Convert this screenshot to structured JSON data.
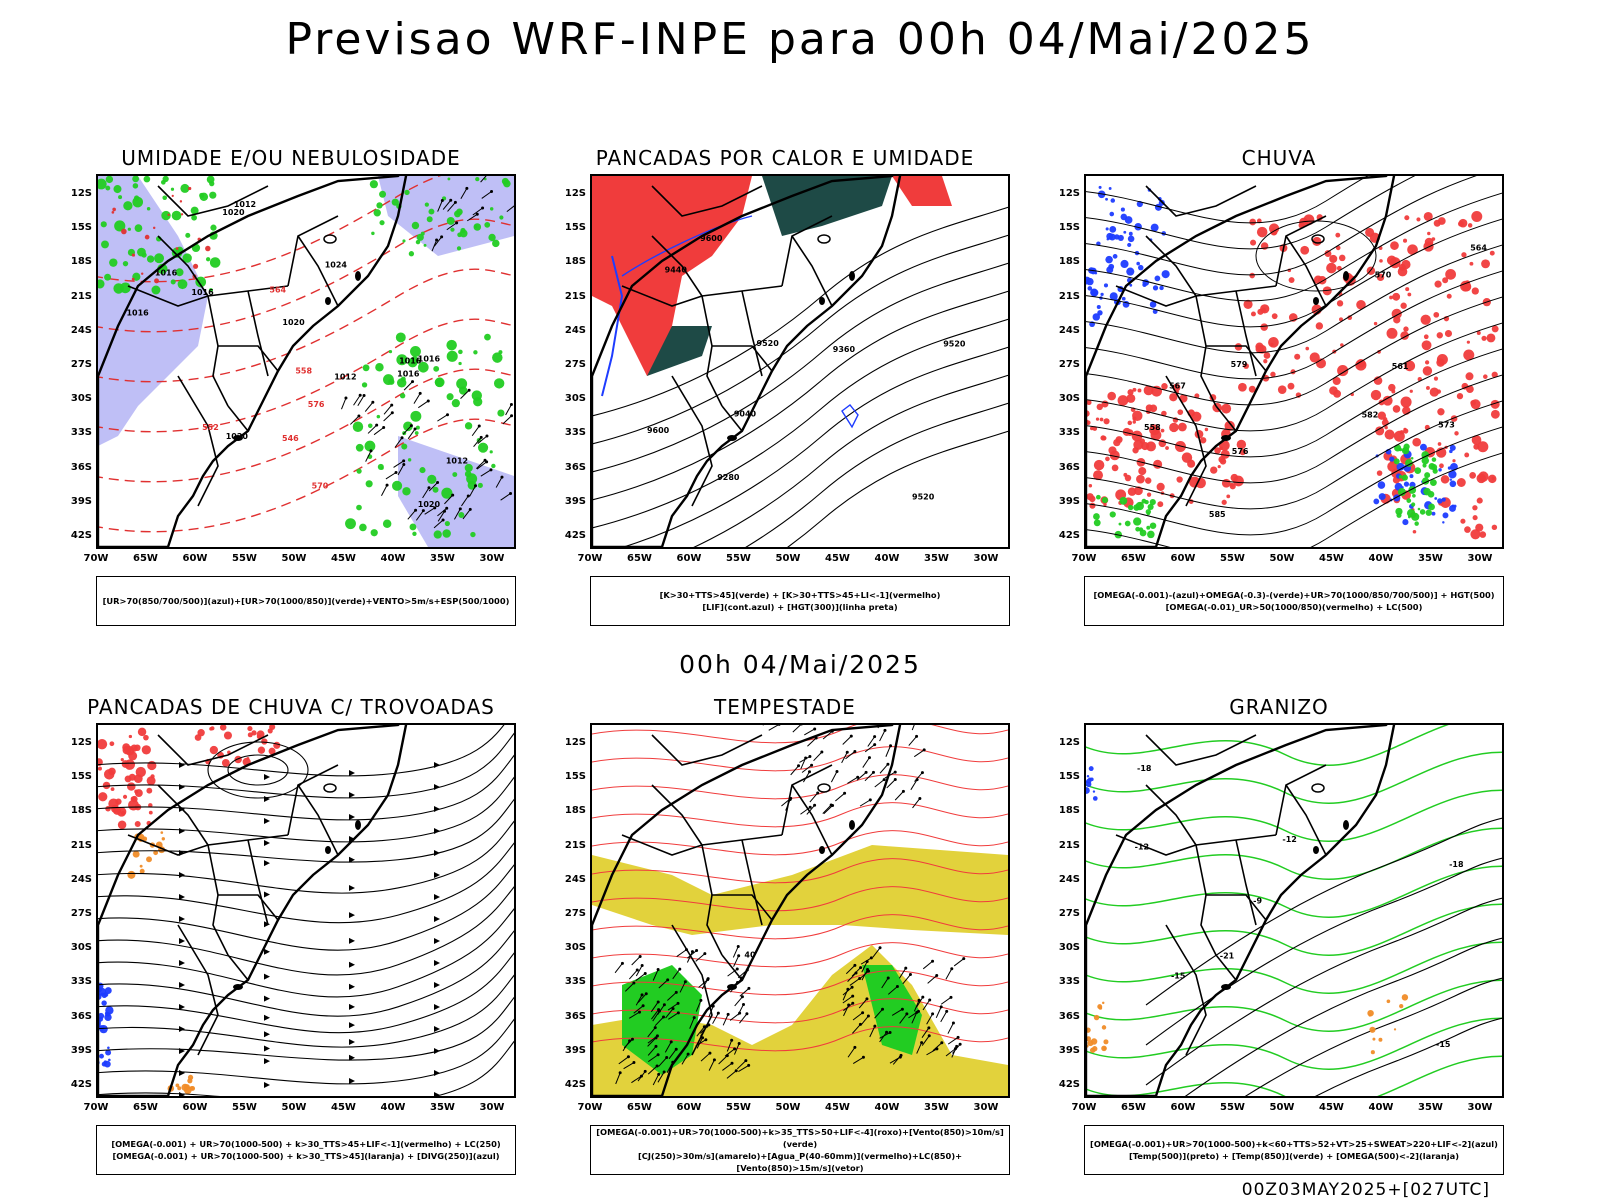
{
  "title": "Previsao WRF-INPE  para 00h 04/Mai/2025",
  "mid_title": "00h 04/Mai/2025",
  "footer": "00Z03MAY2025+[027UTC]",
  "lat_labels": [
    "12S",
    "15S",
    "18S",
    "21S",
    "24S",
    "27S",
    "30S",
    "33S",
    "36S",
    "39S",
    "42S"
  ],
  "lon_labels": [
    "70W",
    "65W",
    "60W",
    "55W",
    "50W",
    "45W",
    "40W",
    "35W",
    "30W"
  ],
  "panels": [
    {
      "title": "UMIDADE E/OU NEBULOSIDADE",
      "legend": [
        "[UR>70(850/700/500)](azul)+[UR>70(1000/850)](verde)+VENTO>5m/s+ESP(500/1000)"
      ],
      "labels": [
        "1016",
        "1016",
        "1020",
        "1020",
        "1020",
        "1024",
        "1016",
        "1012",
        "1012",
        "1016",
        "1012",
        "1016",
        "1020",
        "1016",
        "576",
        "570",
        "564",
        "558",
        "552",
        "546"
      ]
    },
    {
      "title": "PANCADAS POR CALOR E UMIDADE",
      "legend": [
        "[K>30+TTS>45](verde) + [K>30+TTS>45+LI<-1](vermelho)",
        "[LIF](cont.azul) + [HGT(300)](linha preta)"
      ],
      "labels": [
        "9600",
        "9520",
        "9520",
        "9520",
        "9600",
        "9440",
        "9360",
        "9280",
        "9040"
      ]
    },
    {
      "title": "CHUVA",
      "legend": [
        "[OMEGA(-0.001)-(azul)+OMEGA(-0.3)-(verde)+UR>70(1000/850/700/500)] + HGT(500)",
        "[OMEGA(-0.01)_UR>50(1000/850)(vermelho) + LC(500)"
      ],
      "labels": [
        "585",
        "582",
        "579",
        "576",
        "573",
        "570",
        "567",
        "564",
        "561",
        "558"
      ]
    },
    {
      "title": "PANCADAS DE CHUVA C/ TROVOADAS",
      "legend": [
        "[OMEGA(-0.001) + UR>70(1000-500) + k>30_TTS>45+LIF<-1](vermelho) + LC(250)",
        "[OMEGA(-0.001) + UR>70(1000-500) + k>30_TTS>45](laranja) + [DIVG(250)](azul)"
      ],
      "labels": []
    },
    {
      "title": "TEMPESTADE",
      "legend": [
        "[OMEGA(-0.001)+UR>70(1000-500)+k>35_TTS>50+LIF<-4](roxo)+[Vento(850)>10m/s](verde)",
        "[CJ(250)>30m/s](amarelo)+[Agua_P(40-60mm)](vermelho)+LC(850)+[Vento(850)>15m/s](vetor)"
      ],
      "labels": [
        "40"
      ]
    },
    {
      "title": "GRANIZO",
      "legend": [
        "[OMEGA(-0.001)+UR>70(1000-500)+k<60+TTS>52+VT>25+SWEAT>220+LIF<-2](azul)",
        "[Temp(500)](preto) + [Temp(850)](verde) + [OMEGA(500)<-2](laranja)"
      ],
      "labels": [
        "-9",
        "-12",
        "-15",
        "-18",
        "-21",
        "-12",
        "-15",
        "-18"
      ]
    }
  ],
  "colors": {
    "red": "#f03c3c",
    "green": "#22cc22",
    "blue": "#1e3cff",
    "lavender": "#b4b4f5",
    "darkteal": "#1e4a46",
    "yellow": "#e2d23c",
    "orange": "#f08c28"
  }
}
